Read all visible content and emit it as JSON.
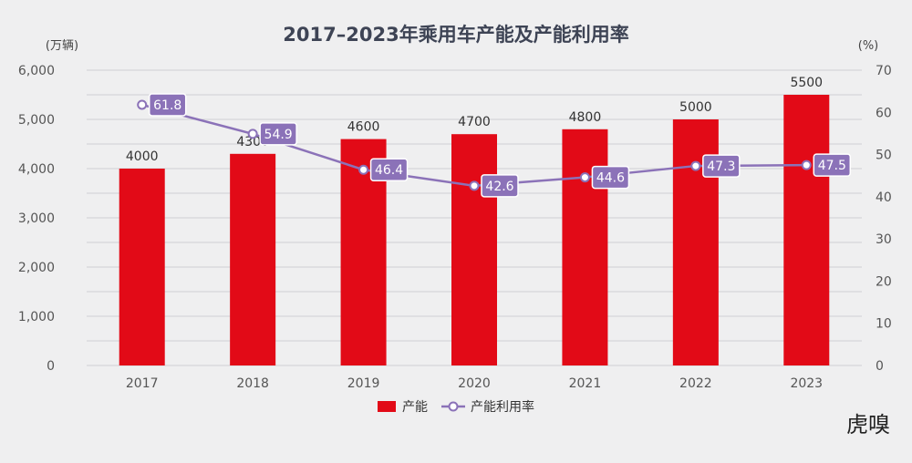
{
  "title": "2017–2023年乘用车产能及产能利用率",
  "logo": "虎嗅",
  "colors": {
    "bar": "#e20a17",
    "line": "#8b72b8",
    "grid": "#cfcfd3",
    "background": "#efeff0"
  },
  "chart_data": {
    "type": "bar+line",
    "title": "2017–2023年乘用车产能及产能利用率",
    "categories": [
      "2017",
      "2018",
      "2019",
      "2020",
      "2021",
      "2022",
      "2023"
    ],
    "left_axis": {
      "unit_label": "(万辆)",
      "range": [
        0,
        6000
      ],
      "ticks": [
        "0",
        "1,000",
        "2,000",
        "3,000",
        "4,000",
        "5,000",
        "6,000"
      ]
    },
    "right_axis": {
      "unit_label": "(%)",
      "range": [
        0,
        70
      ],
      "ticks": [
        "0",
        "10",
        "20",
        "30",
        "40",
        "50",
        "60",
        "70"
      ]
    },
    "series": [
      {
        "name": "产能",
        "type": "bar",
        "axis": "left",
        "values": [
          4000,
          4300,
          4600,
          4700,
          4800,
          5000,
          5500
        ],
        "labels": [
          "4000",
          "4300",
          "4600",
          "4700",
          "4800",
          "5000",
          "5500"
        ]
      },
      {
        "name": "产能利用率",
        "type": "line",
        "axis": "right",
        "values": [
          61.8,
          54.9,
          46.4,
          42.6,
          44.6,
          47.3,
          47.5
        ],
        "labels": [
          "61.8",
          "54.9",
          "46.4",
          "42.6",
          "44.6",
          "47.3",
          "47.5"
        ]
      }
    ],
    "grid": true,
    "legend_position": "bottom-center"
  }
}
